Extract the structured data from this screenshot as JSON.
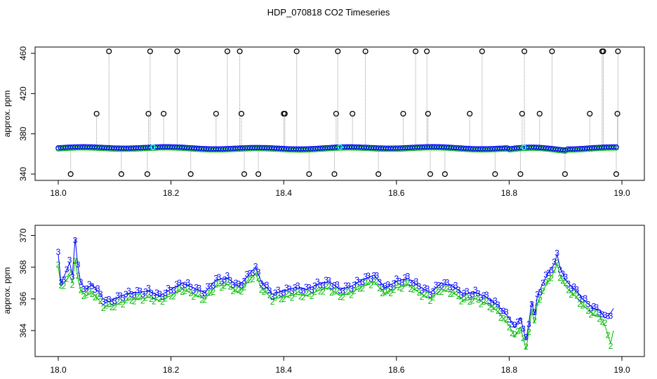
{
  "chart_data": [
    {
      "type": "scatter",
      "title": "HDP_070818  CO2 Timeseries",
      "xlabel": "",
      "ylabel": "approx. ppm",
      "xlim": [
        18.0,
        19.0
      ],
      "ylim": [
        338,
        465
      ],
      "xticks": [
        "18.0",
        "18.2",
        "18.4",
        "18.6",
        "18.8",
        "19.0"
      ],
      "yticks": [
        "340",
        "380",
        "420",
        "460"
      ],
      "legend": "none",
      "grid": false,
      "colors": {
        "outliers": "#000000",
        "series_blue": "#0000ff",
        "series_green": "#00bb00",
        "highlight": "#00ffff",
        "connector": "#999999"
      },
      "baseline": {
        "start": 18.0,
        "end": 18.99,
        "mean": 366
      },
      "outliers": [
        {
          "x": 18.022,
          "y": 340
        },
        {
          "x": 18.068,
          "y": 400
        },
        {
          "x": 18.09,
          "y": 462
        },
        {
          "x": 18.112,
          "y": 340
        },
        {
          "x": 18.158,
          "y": 340
        },
        {
          "x": 18.16,
          "y": 400
        },
        {
          "x": 18.163,
          "y": 462
        },
        {
          "x": 18.187,
          "y": 400
        },
        {
          "x": 18.211,
          "y": 462
        },
        {
          "x": 18.235,
          "y": 340
        },
        {
          "x": 18.28,
          "y": 400
        },
        {
          "x": 18.3,
          "y": 462
        },
        {
          "x": 18.322,
          "y": 462
        },
        {
          "x": 18.325,
          "y": 400
        },
        {
          "x": 18.33,
          "y": 340
        },
        {
          "x": 18.355,
          "y": 340
        },
        {
          "x": 18.4,
          "y": 400
        },
        {
          "x": 18.402,
          "y": 400
        },
        {
          "x": 18.423,
          "y": 462
        },
        {
          "x": 18.445,
          "y": 340
        },
        {
          "x": 18.49,
          "y": 340
        },
        {
          "x": 18.493,
          "y": 400
        },
        {
          "x": 18.496,
          "y": 462
        },
        {
          "x": 18.522,
          "y": 400
        },
        {
          "x": 18.545,
          "y": 462
        },
        {
          "x": 18.568,
          "y": 340
        },
        {
          "x": 18.612,
          "y": 400
        },
        {
          "x": 18.634,
          "y": 462
        },
        {
          "x": 18.654,
          "y": 462
        },
        {
          "x": 18.656,
          "y": 400
        },
        {
          "x": 18.66,
          "y": 340
        },
        {
          "x": 18.686,
          "y": 340
        },
        {
          "x": 18.73,
          "y": 400
        },
        {
          "x": 18.752,
          "y": 462
        },
        {
          "x": 18.775,
          "y": 340
        },
        {
          "x": 18.82,
          "y": 340
        },
        {
          "x": 18.823,
          "y": 400
        },
        {
          "x": 18.827,
          "y": 462
        },
        {
          "x": 18.854,
          "y": 400
        },
        {
          "x": 18.876,
          "y": 462
        },
        {
          "x": 18.899,
          "y": 340
        },
        {
          "x": 18.943,
          "y": 400
        },
        {
          "x": 18.965,
          "y": 462
        },
        {
          "x": 18.967,
          "y": 462
        },
        {
          "x": 18.99,
          "y": 340
        },
        {
          "x": 18.992,
          "y": 400
        },
        {
          "x": 18.993,
          "y": 462
        }
      ]
    },
    {
      "type": "line",
      "title": "",
      "xlabel": "",
      "ylabel": "approx. ppm",
      "xlim": [
        18.0,
        19.0
      ],
      "ylim": [
        362.5,
        370.5
      ],
      "xticks": [
        "18.0",
        "18.2",
        "18.4",
        "18.6",
        "18.8",
        "19.0"
      ],
      "yticks": [
        "364",
        "366",
        "368",
        "370"
      ],
      "legend": "none",
      "grid": false,
      "series": [
        {
          "marker": "3",
          "color": "#0000ff",
          "x": [
            18.0,
            18.005,
            18.01,
            18.015,
            18.02,
            18.025,
            18.03,
            18.035,
            18.04,
            18.05,
            18.06,
            18.07,
            18.08,
            18.09,
            18.1,
            18.12,
            18.14,
            18.16,
            18.18,
            18.2,
            18.22,
            18.24,
            18.26,
            18.28,
            18.3,
            18.32,
            18.34,
            18.35,
            18.36,
            18.38,
            18.4,
            18.42,
            18.44,
            18.46,
            18.48,
            18.5,
            18.52,
            18.54,
            18.56,
            18.58,
            18.6,
            18.62,
            18.64,
            18.66,
            18.68,
            18.7,
            18.72,
            18.74,
            18.76,
            18.78,
            18.8,
            18.81,
            18.82,
            18.83,
            18.835,
            18.84,
            18.845,
            18.85,
            18.86,
            18.87,
            18.88,
            18.885,
            18.89,
            18.9,
            18.91,
            18.92,
            18.93,
            18.94,
            18.95,
            18.96,
            18.97,
            18.98,
            18.985
          ],
          "y": [
            368.8,
            367.0,
            367.4,
            367.8,
            368.3,
            367.5,
            369.8,
            368.0,
            367.0,
            366.6,
            366.9,
            366.5,
            366.0,
            365.8,
            366.0,
            366.3,
            366.4,
            366.5,
            366.2,
            366.6,
            367.0,
            366.7,
            366.4,
            367.2,
            367.3,
            366.8,
            367.6,
            368.0,
            367.1,
            366.3,
            366.5,
            366.7,
            366.6,
            366.9,
            367.1,
            366.6,
            366.8,
            367.2,
            367.5,
            366.7,
            367.1,
            367.3,
            366.8,
            366.4,
            367.0,
            366.8,
            366.3,
            366.4,
            366.1,
            365.6,
            364.8,
            364.2,
            364.8,
            363.4,
            364.5,
            365.8,
            365.0,
            366.2,
            367.0,
            367.7,
            368.2,
            368.8,
            368.0,
            367.2,
            366.8,
            366.5,
            366.0,
            365.7,
            365.4,
            365.3,
            364.8,
            365.1,
            365.4
          ]
        },
        {
          "marker": "2",
          "color": "#00bb00",
          "x": [
            18.0,
            18.005,
            18.01,
            18.015,
            18.02,
            18.025,
            18.03,
            18.035,
            18.04,
            18.05,
            18.06,
            18.07,
            18.08,
            18.09,
            18.1,
            18.12,
            18.14,
            18.16,
            18.18,
            18.2,
            18.22,
            18.24,
            18.26,
            18.28,
            18.3,
            18.32,
            18.34,
            18.35,
            18.36,
            18.38,
            18.4,
            18.42,
            18.44,
            18.46,
            18.48,
            18.5,
            18.52,
            18.54,
            18.56,
            18.58,
            18.6,
            18.62,
            18.64,
            18.66,
            18.68,
            18.7,
            18.72,
            18.74,
            18.76,
            18.78,
            18.8,
            18.81,
            18.82,
            18.83,
            18.835,
            18.84,
            18.845,
            18.85,
            18.86,
            18.87,
            18.88,
            18.885,
            18.89,
            18.9,
            18.91,
            18.92,
            18.93,
            18.94,
            18.95,
            18.96,
            18.97,
            18.98,
            18.985
          ],
          "y": [
            368.0,
            366.8,
            367.0,
            367.2,
            367.5,
            367.0,
            368.5,
            367.3,
            366.5,
            366.2,
            366.4,
            366.0,
            365.6,
            365.5,
            365.6,
            365.9,
            366.0,
            366.1,
            365.9,
            366.2,
            366.6,
            366.3,
            366.0,
            366.8,
            366.9,
            366.4,
            367.2,
            367.6,
            366.7,
            366.0,
            366.1,
            366.3,
            366.2,
            366.5,
            366.7,
            366.2,
            366.4,
            366.8,
            367.1,
            366.3,
            366.7,
            366.9,
            366.4,
            366.0,
            366.6,
            366.4,
            365.9,
            366.0,
            365.7,
            365.2,
            364.3,
            363.6,
            364.2,
            362.8,
            364.0,
            365.3,
            364.5,
            365.7,
            366.5,
            367.2,
            367.7,
            368.2,
            367.5,
            366.8,
            366.4,
            366.1,
            365.6,
            365.3,
            365.0,
            364.9,
            364.3,
            363.2,
            364.0
          ]
        }
      ]
    }
  ]
}
